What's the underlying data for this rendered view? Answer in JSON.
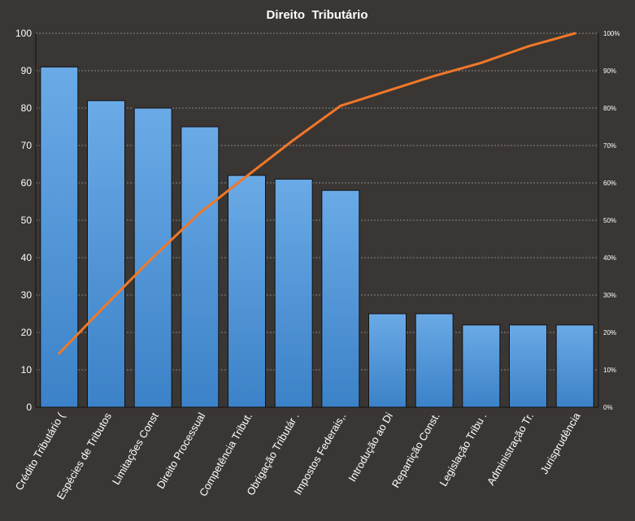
{
  "chart_data": {
    "type": "bar",
    "title": "Direito  Tributário",
    "categories": [
      "Crédito Tributário (",
      "Espécies de Tributos",
      "Limitações Const",
      "Direito Processual",
      "Competência Tribut.",
      "Obrigação Tributár .",
      "Impostos Federais,.",
      "Introdução ao Di",
      "Repartição Const.",
      "Legislação Tribu .",
      "Administração Tr.",
      "Jurisprudência"
    ],
    "series": [
      {
        "type": "bar",
        "values": [
          91,
          82,
          80,
          75,
          62,
          61,
          58,
          25,
          25,
          22,
          22,
          22
        ],
        "color": "#4a90d9"
      },
      {
        "type": "line",
        "axis": "secondary",
        "values": [
          14.4,
          27.4,
          40.1,
          52.0,
          61.8,
          71.5,
          80.6,
          84.6,
          88.6,
          92.1,
          96.5,
          100
        ],
        "color": "#f07828"
      }
    ],
    "ylim": [
      0,
      100
    ],
    "yticks": [
      "0",
      "10",
      "20",
      "30",
      "40",
      "50",
      "60",
      "70",
      "80",
      "90",
      "100"
    ],
    "y2lim": [
      0,
      100
    ],
    "y2ticks": [
      "0%",
      "10%",
      "20%",
      "30%",
      "40%",
      "50%",
      "60%",
      "70%",
      "80%",
      "90%",
      "100%"
    ],
    "grid": true,
    "legend": "none",
    "colors": {
      "background": "#3a3634",
      "text": "#ffffff",
      "grid": "#a0a0a0",
      "bar_top": "#6aaae6",
      "bar_bottom": "#3c82c8",
      "line": "#f07828"
    }
  }
}
